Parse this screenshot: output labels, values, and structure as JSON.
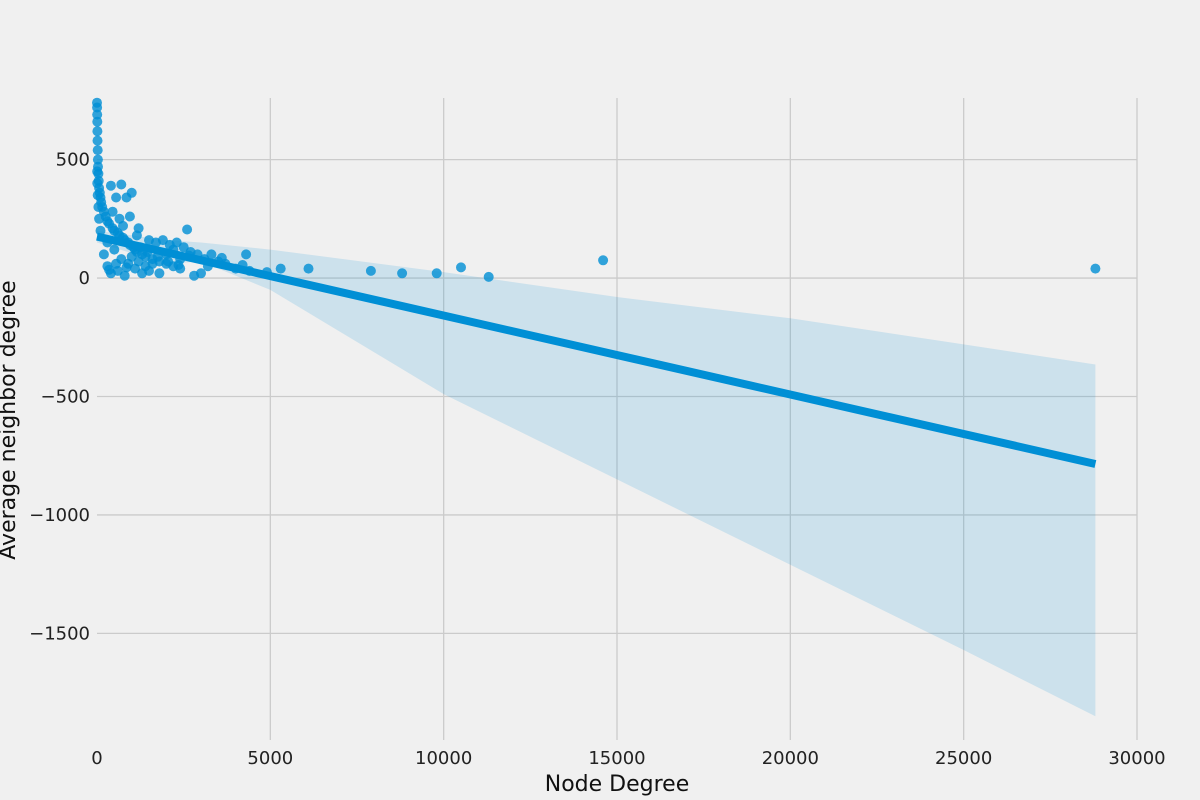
{
  "chart_data": {
    "type": "scatter",
    "title": "",
    "xlabel": "Node Degree",
    "ylabel": "Average neighbor degree",
    "xlim": [
      0,
      30000
    ],
    "ylim": [
      -1950,
      760
    ],
    "x_ticks": [
      0,
      5000,
      10000,
      15000,
      20000,
      25000,
      30000
    ],
    "y_ticks": [
      500,
      0,
      -500,
      -1000,
      -1500
    ],
    "x_tick_labels": [
      "0",
      "5000",
      "10000",
      "15000",
      "20000",
      "25000",
      "30000"
    ],
    "y_tick_labels": [
      "500",
      "0",
      "−500",
      "−1000",
      "−1500"
    ],
    "grid": true,
    "colors": {
      "background": "#f0f0f0",
      "grid": "#cbcbcb",
      "points": "#008fd5",
      "regression_line": "#008fd5",
      "confidence_band": "#008fd5"
    },
    "series": [
      {
        "points": [
          [
            1,
            740
          ],
          [
            2,
            720
          ],
          [
            5,
            690
          ],
          [
            8,
            660
          ],
          [
            12,
            620
          ],
          [
            15,
            580
          ],
          [
            20,
            540
          ],
          [
            25,
            500
          ],
          [
            30,
            470
          ],
          [
            40,
            440
          ],
          [
            50,
            410
          ],
          [
            60,
            380
          ],
          [
            80,
            360
          ],
          [
            100,
            340
          ],
          [
            120,
            320
          ],
          [
            150,
            300
          ],
          [
            200,
            280
          ],
          [
            250,
            260
          ],
          [
            300,
            240
          ],
          [
            350,
            230
          ],
          [
            400,
            390
          ],
          [
            450,
            210
          ],
          [
            500,
            200
          ],
          [
            550,
            340
          ],
          [
            600,
            190
          ],
          [
            650,
            180
          ],
          [
            700,
            395
          ],
          [
            750,
            170
          ],
          [
            800,
            160
          ],
          [
            850,
            340
          ],
          [
            900,
            150
          ],
          [
            950,
            140
          ],
          [
            1000,
            360
          ],
          [
            1050,
            130
          ],
          [
            1100,
            120
          ],
          [
            1150,
            110
          ],
          [
            1200,
            210
          ],
          [
            1300,
            100
          ],
          [
            1400,
            90
          ],
          [
            1500,
            160
          ],
          [
            1600,
            80
          ],
          [
            1700,
            150
          ],
          [
            1800,
            70
          ],
          [
            1900,
            160
          ],
          [
            2000,
            60
          ],
          [
            2100,
            140
          ],
          [
            2200,
            50
          ],
          [
            2300,
            150
          ],
          [
            2400,
            40
          ],
          [
            2500,
            130
          ],
          [
            2600,
            205
          ],
          [
            2700,
            110
          ],
          [
            2800,
            10
          ],
          [
            2900,
            100
          ],
          [
            3000,
            20
          ],
          [
            3100,
            80
          ],
          [
            3300,
            100
          ],
          [
            3500,
            70
          ],
          [
            3700,
            60
          ],
          [
            4000,
            40
          ],
          [
            4300,
            100
          ],
          [
            4400,
            30
          ],
          [
            4900,
            25
          ],
          [
            5300,
            40
          ],
          [
            6100,
            40
          ],
          [
            7900,
            30
          ],
          [
            8800,
            20
          ],
          [
            9800,
            20
          ],
          [
            10500,
            45
          ],
          [
            11300,
            5
          ],
          [
            14600,
            75
          ],
          [
            28800,
            40
          ],
          [
            200,
            100
          ],
          [
            300,
            50
          ],
          [
            400,
            20
          ],
          [
            500,
            120
          ],
          [
            600,
            30
          ],
          [
            700,
            80
          ],
          [
            800,
            10
          ],
          [
            900,
            60
          ],
          [
            1000,
            90
          ],
          [
            1100,
            40
          ],
          [
            1200,
            70
          ],
          [
            1300,
            20
          ],
          [
            1400,
            50
          ],
          [
            1500,
            30
          ],
          [
            1600,
            60
          ],
          [
            1800,
            20
          ],
          [
            2000,
            100
          ],
          [
            2200,
            120
          ],
          [
            2400,
            80
          ],
          [
            300,
            150
          ],
          [
            450,
            280
          ],
          [
            650,
            250
          ],
          [
            750,
            220
          ],
          [
            950,
            260
          ],
          [
            1150,
            180
          ],
          [
            100,
            200
          ],
          [
            60,
            250
          ],
          [
            40,
            300
          ],
          [
            20,
            350
          ],
          [
            10,
            400
          ],
          [
            5,
            450
          ],
          [
            350,
            35
          ],
          [
            550,
            60
          ],
          [
            850,
            45
          ],
          [
            1250,
            130
          ],
          [
            1450,
            110
          ],
          [
            1750,
            90
          ],
          [
            2050,
            70
          ],
          [
            2350,
            55
          ],
          [
            2650,
            95
          ],
          [
            3200,
            50
          ],
          [
            3600,
            85
          ],
          [
            4200,
            55
          ]
        ]
      }
    ],
    "regression": {
      "x_start": 0,
      "x_end": 28800,
      "y_start": 175,
      "y_end": -785
    },
    "confidence_band": [
      {
        "x": 0,
        "lower": 150,
        "upper": 200
      },
      {
        "x": 2000,
        "lower": 60,
        "upper": 160
      },
      {
        "x": 3000,
        "lower": 70,
        "upper": 150
      },
      {
        "x": 5000,
        "lower": -50,
        "upper": 120
      },
      {
        "x": 10000,
        "lower": -490,
        "upper": 25
      },
      {
        "x": 15000,
        "lower": -850,
        "upper": -80
      },
      {
        "x": 20000,
        "lower": -1210,
        "upper": -170
      },
      {
        "x": 25000,
        "lower": -1570,
        "upper": -280
      },
      {
        "x": 28800,
        "lower": -1850,
        "upper": -365
      }
    ]
  }
}
